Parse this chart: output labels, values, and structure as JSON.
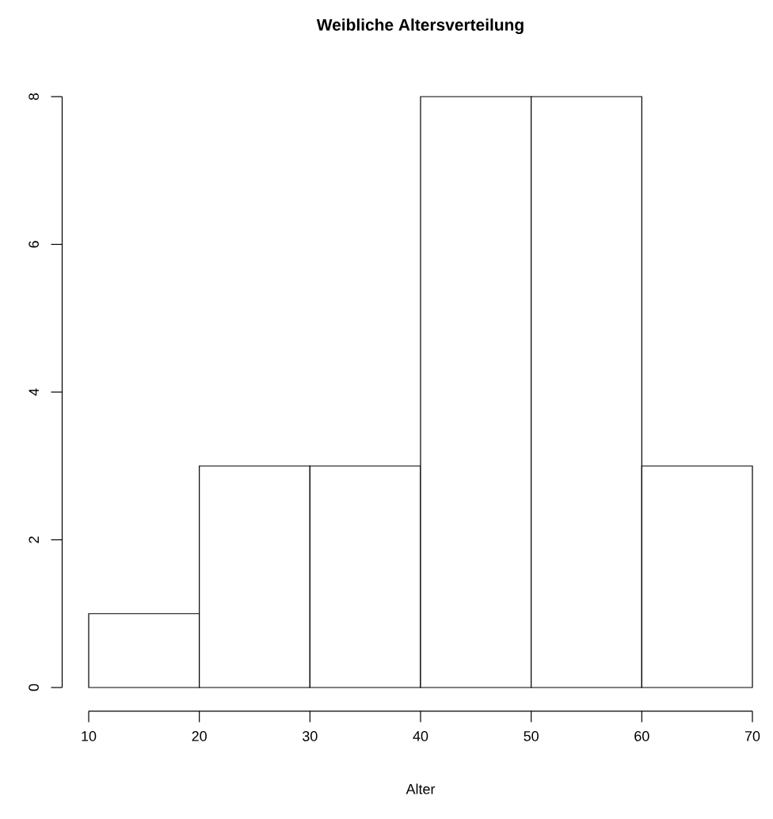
{
  "chart_data": {
    "type": "histogram",
    "title": "Weibliche Altersverteilung",
    "xlabel": "Alter",
    "bins": [
      10,
      20,
      30,
      40,
      50,
      60,
      70
    ],
    "values": [
      1,
      3,
      3,
      8,
      8,
      3
    ],
    "color": "#ffffff",
    "xlim": [
      10,
      70
    ],
    "ylim": [
      0,
      8
    ],
    "xticks": [
      10,
      20,
      30,
      40,
      50,
      60,
      70
    ],
    "yticks": [
      0,
      2,
      4,
      6,
      8
    ]
  }
}
